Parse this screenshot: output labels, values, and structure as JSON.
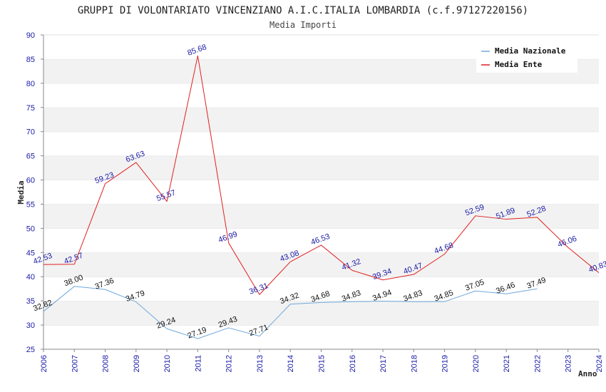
{
  "chart_data": {
    "type": "line",
    "title": "GRUPPI DI VOLONTARIATO VINCENZIANO A.I.C.ITALIA LOMBARDIA (c.f.97127220156)",
    "subtitle": "Media Importi",
    "xlabel": "Anno",
    "ylabel": "Media",
    "ylim": [
      25,
      90
    ],
    "yticks": [
      25,
      30,
      35,
      40,
      45,
      50,
      55,
      60,
      65,
      70,
      75,
      80,
      85,
      90
    ],
    "x": [
      "2006",
      "2007",
      "2008",
      "2009",
      "2010",
      "2011",
      "2012",
      "2013",
      "2014",
      "2015",
      "2016",
      "2017",
      "2018",
      "2019",
      "2020",
      "2021",
      "2022",
      "2023",
      "2024"
    ],
    "legend_position": "top-right",
    "grid": "horizontal alternating bands",
    "series": [
      {
        "name": "Media Nazionale",
        "color": "#6fa8dc",
        "values": [
          32.82,
          38.0,
          37.36,
          34.79,
          29.24,
          27.19,
          29.43,
          27.71,
          34.32,
          34.68,
          34.83,
          34.94,
          34.83,
          34.85,
          37.05,
          36.46,
          37.49,
          null,
          null
        ],
        "labels": [
          "32.82",
          "38.00",
          "37.36",
          "34.79",
          "29.24",
          "27.19",
          "29.43",
          "27.71",
          "34.32",
          "34.68",
          "34.83",
          "34.94",
          "34.83",
          "34.85",
          "37.05",
          "36.46",
          "37.49",
          null,
          null
        ]
      },
      {
        "name": "Media Ente",
        "color": "#e02020",
        "values": [
          42.53,
          42.57,
          59.23,
          63.63,
          55.57,
          85.68,
          46.99,
          36.31,
          43.08,
          46.53,
          41.32,
          39.34,
          40.47,
          44.68,
          52.59,
          51.89,
          52.28,
          46.06,
          40.83
        ],
        "labels": [
          "42.53",
          "42.57",
          "59.23",
          "63.63",
          "55.57",
          "85.68",
          "46.99",
          "36.31",
          "43.08",
          "46.53",
          "41.32",
          "39.34",
          "40.47",
          "44.68",
          "52.59",
          "51.89",
          "52.28",
          "46.06",
          "40.83"
        ]
      }
    ]
  }
}
